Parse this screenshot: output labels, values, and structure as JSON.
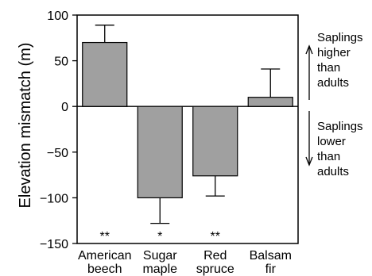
{
  "chart_data": {
    "type": "bar",
    "ylabel": "Elevation mismatch (m)",
    "ylim": [
      -150,
      100
    ],
    "yticks": [
      100,
      50,
      0,
      -50,
      -100,
      -150
    ],
    "categories": [
      {
        "line1": "American",
        "line2": "beech",
        "value": 70,
        "error": 19,
        "sig": "**"
      },
      {
        "line1": "Sugar",
        "line2": "maple",
        "value": -100,
        "error": 28,
        "sig": "*"
      },
      {
        "line1": "Red",
        "line2": "spruce",
        "value": -76,
        "error": 22,
        "sig": "**"
      },
      {
        "line1": "Balsam",
        "line2": "fir",
        "value": 10,
        "error": 31,
        "sig": ""
      }
    ],
    "annotations": {
      "up": [
        "Saplings",
        "higher",
        "than",
        "adults"
      ],
      "down": [
        "Saplings",
        "lower",
        "than",
        "adults"
      ]
    },
    "bar_color": "#a0a0a0"
  }
}
